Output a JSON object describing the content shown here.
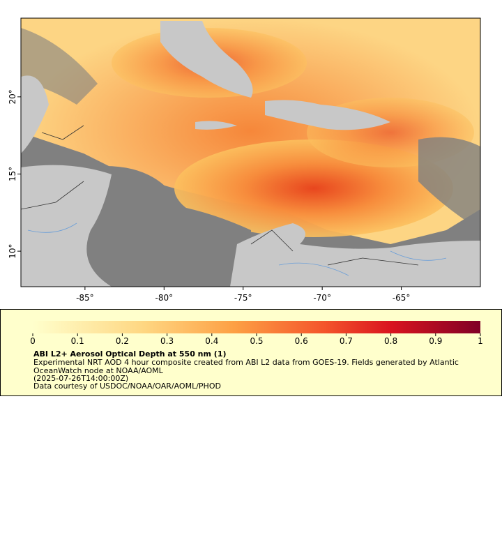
{
  "map": {
    "xlim": [
      -89.05,
      -60
    ],
    "ylim": [
      7.7,
      25.1
    ],
    "lon_ticks": [
      {
        "value": -85,
        "label": "-85°"
      },
      {
        "value": -80,
        "label": "-80°"
      },
      {
        "value": -75,
        "label": "-75°"
      },
      {
        "value": -70,
        "label": "-70°"
      },
      {
        "value": -65,
        "label": "-65°"
      }
    ],
    "lat_ticks": [
      {
        "value": 10,
        "label": "10°"
      },
      {
        "value": 15,
        "label": "15°"
      },
      {
        "value": 20,
        "label": "20°"
      }
    ]
  },
  "colorbar": {
    "lim": [
      0,
      1
    ],
    "ticks": [
      0,
      0.1,
      0.2,
      0.3,
      0.4,
      0.5,
      0.6,
      0.7,
      0.8,
      0.9,
      1
    ]
  },
  "legend": {
    "title": "ABI L2+ Aerosol Optical Depth at 550 nm (1)",
    "description": "Experimental NRT AOD 4 hour composite created from ABI L2 data from GOES-19. Fields generated by Atlantic OceanWatch node at NOAA/AOML",
    "time": "(2025-07-26T14:00:00Z)",
    "credit": "Data courtesy of USDOC/NOAA/OAR/AOML/PHOD"
  }
}
